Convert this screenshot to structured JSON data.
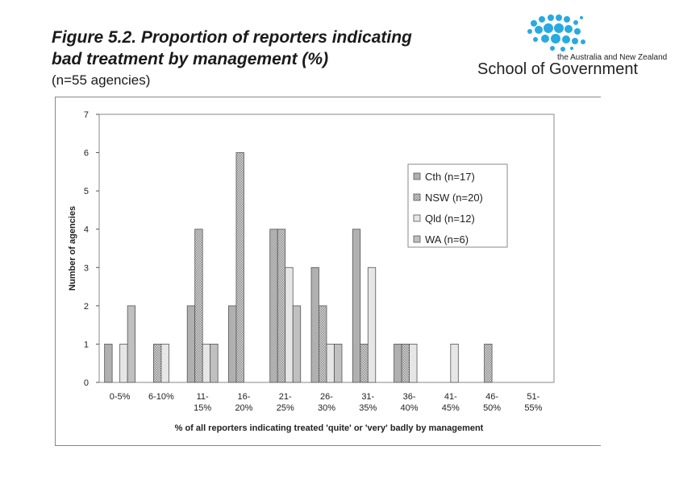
{
  "header": {
    "title_line1": "Figure 5.2. Proportion of reporters indicating",
    "title_line2": "bad treatment by management (%)",
    "subtitle": "(n=55 agencies)"
  },
  "logo": {
    "tagline": "the Australia and New Zealand",
    "name": "School of Government",
    "dot_color": "#29a9e1"
  },
  "chart_data": {
    "type": "bar",
    "categories": [
      [
        "0-5%"
      ],
      [
        "6-10%"
      ],
      [
        "11-",
        "15%"
      ],
      [
        "16-",
        "20%"
      ],
      [
        "21-",
        "25%"
      ],
      [
        "26-",
        "30%"
      ],
      [
        "31-",
        "35%"
      ],
      [
        "36-",
        "40%"
      ],
      [
        "41-",
        "45%"
      ],
      [
        "46-",
        "50%"
      ],
      [
        "51-",
        "55%"
      ]
    ],
    "series": [
      {
        "name": "Cth (n=17)",
        "color": "#b0b0b0",
        "pattern": "solid",
        "values": [
          1,
          0,
          2,
          2,
          4,
          3,
          4,
          1,
          0,
          0,
          0
        ]
      },
      {
        "name": "NSW (n=20)",
        "color": "#c8c8c8",
        "pattern": "dotted",
        "values": [
          0,
          1,
          4,
          6,
          4,
          2,
          1,
          1,
          0,
          1,
          0
        ]
      },
      {
        "name": "Qld (n=12)",
        "color": "#e6e6e6",
        "pattern": "solid",
        "values": [
          1,
          1,
          1,
          0,
          3,
          1,
          3,
          1,
          1,
          0,
          0
        ]
      },
      {
        "name": "WA (n=6)",
        "color": "#c0c0c0",
        "pattern": "solid",
        "values": [
          2,
          0,
          1,
          0,
          2,
          1,
          0,
          0,
          0,
          0,
          0
        ]
      }
    ],
    "xlabel": "% of all reporters indicating treated 'quite' or 'very' badly by management",
    "ylabel": "Number of agencies",
    "ylim": [
      0,
      7
    ],
    "yticks": [
      0,
      1,
      2,
      3,
      4,
      5,
      6,
      7
    ],
    "grid": false,
    "legend_position": "right"
  }
}
